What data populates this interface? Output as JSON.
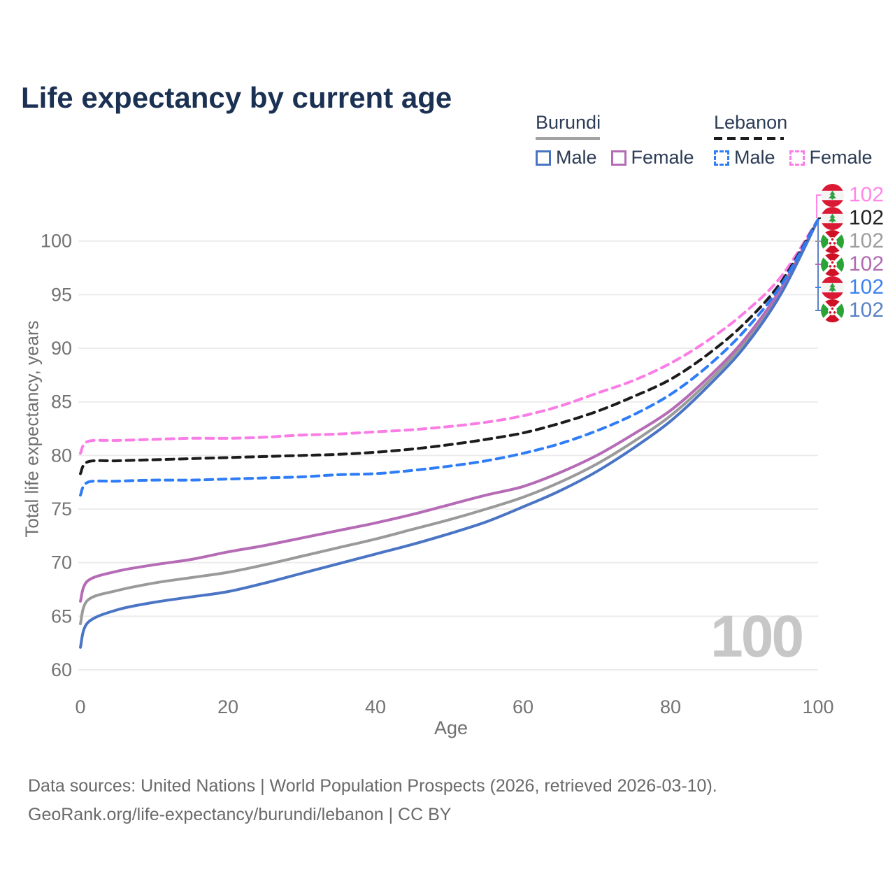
{
  "title": "Life expectancy by current age",
  "age_counter": "100",
  "legend": {
    "groups": [
      {
        "label": "Burundi",
        "line_style": "solid",
        "items": [
          {
            "label": "Male",
            "color": "#4a74c4"
          },
          {
            "label": "Female",
            "color": "#b56bb5"
          }
        ]
      },
      {
        "label": "Lebanon",
        "line_style": "dashed",
        "items": [
          {
            "label": "Male",
            "color": "#2f7df6"
          },
          {
            "label": "Female",
            "color": "#fa7de6"
          }
        ]
      }
    ]
  },
  "chart_data": {
    "type": "line",
    "title": "Life expectancy by current age",
    "xlabel": "Age",
    "ylabel": "Total life expectancy, years",
    "xlim": [
      0,
      100
    ],
    "ylim": [
      60,
      103
    ],
    "xticks": [
      0,
      20,
      40,
      60,
      80,
      100
    ],
    "yticks": [
      60,
      65,
      70,
      75,
      80,
      85,
      90,
      95,
      100
    ],
    "grid": "horizontal-only",
    "legend_position": "top-right",
    "x": [
      0,
      1,
      5,
      10,
      15,
      20,
      25,
      30,
      35,
      40,
      45,
      50,
      55,
      60,
      65,
      70,
      75,
      80,
      85,
      90,
      95,
      100
    ],
    "series": [
      {
        "name": "Lebanon Female",
        "country": "lebanon",
        "sex": "female",
        "dash": true,
        "color": "#fa7de6",
        "end_label": "102",
        "end_label_color": "#ff87e6",
        "values": [
          80.2,
          81.3,
          81.4,
          81.5,
          81.6,
          81.6,
          81.7,
          81.9,
          82.0,
          82.2,
          82.4,
          82.7,
          83.1,
          83.7,
          84.6,
          85.8,
          87.0,
          88.6,
          90.7,
          93.3,
          96.7,
          102
        ]
      },
      {
        "name": "Lebanon Both sexes",
        "country": "lebanon",
        "sex": "both",
        "dash": true,
        "color": "#1c1c1c",
        "end_label": "102",
        "end_label_color": "#242424",
        "values": [
          78.3,
          79.4,
          79.5,
          79.6,
          79.7,
          79.8,
          79.9,
          80.0,
          80.1,
          80.3,
          80.6,
          81.0,
          81.5,
          82.1,
          83.0,
          84.1,
          85.5,
          87.1,
          89.4,
          92.3,
          96.2,
          102
        ]
      },
      {
        "name": "Burundi Both sexes",
        "country": "burundi",
        "sex": "both",
        "dash": false,
        "color": "#9a9a9a",
        "end_label": "102",
        "end_label_color": "#9e9e9e",
        "values": [
          64.3,
          66.5,
          67.4,
          68.1,
          68.6,
          69.1,
          69.8,
          70.6,
          71.4,
          72.2,
          73.1,
          74.0,
          75.0,
          76.1,
          77.5,
          79.2,
          81.3,
          83.7,
          86.8,
          90.5,
          95.4,
          102
        ]
      },
      {
        "name": "Burundi Female",
        "country": "burundi",
        "sex": "female",
        "dash": false,
        "color": "#b56bb5",
        "end_label": "102",
        "end_label_color": "#b06cb0",
        "values": [
          66.4,
          68.3,
          69.2,
          69.8,
          70.3,
          71.0,
          71.6,
          72.3,
          73.0,
          73.7,
          74.5,
          75.4,
          76.3,
          77.1,
          78.4,
          80.0,
          82.0,
          84.2,
          87.2,
          90.8,
          95.6,
          102
        ]
      },
      {
        "name": "Lebanon Male",
        "country": "lebanon",
        "sex": "male",
        "dash": true,
        "color": "#2f7df6",
        "end_label": "102",
        "end_label_color": "#3e82f2",
        "values": [
          76.3,
          77.5,
          77.6,
          77.7,
          77.7,
          77.8,
          77.9,
          78.0,
          78.2,
          78.3,
          78.6,
          79.0,
          79.5,
          80.2,
          81.1,
          82.3,
          83.8,
          85.7,
          88.3,
          91.6,
          95.9,
          102
        ]
      },
      {
        "name": "Burundi Male",
        "country": "burundi",
        "sex": "male",
        "dash": false,
        "color": "#4a74c4",
        "end_label": "102",
        "end_label_color": "#5b82c6",
        "values": [
          62.1,
          64.4,
          65.6,
          66.3,
          66.8,
          67.3,
          68.1,
          69.0,
          69.9,
          70.8,
          71.7,
          72.7,
          73.8,
          75.2,
          76.7,
          78.5,
          80.7,
          83.2,
          86.4,
          90.1,
          95.1,
          102
        ]
      }
    ]
  },
  "footer": {
    "line1": "Data sources: United Nations | World Population Prospects (2026, retrieved 2026-03-10).",
    "line2": "GeoRank.org/life-expectancy/burundi/lebanon | CC BY"
  }
}
